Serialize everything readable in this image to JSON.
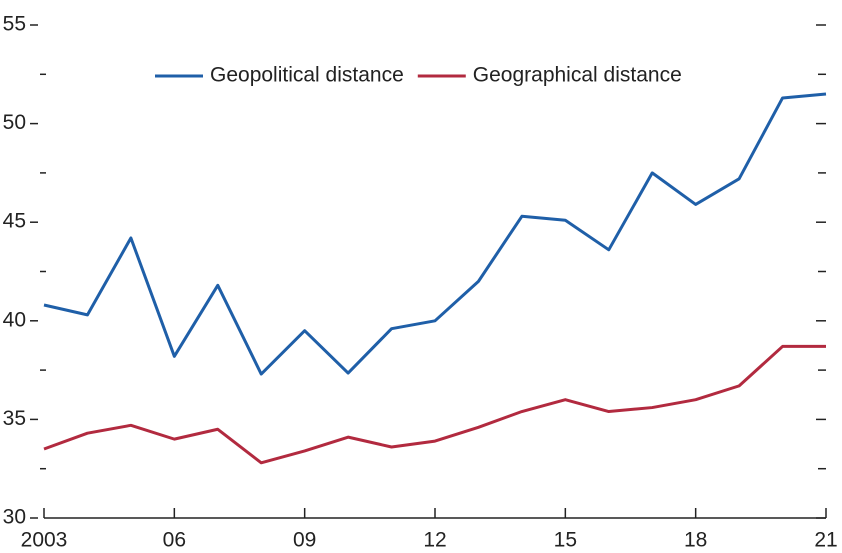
{
  "chart_data": {
    "type": "line",
    "x": [
      2003,
      2004,
      2005,
      2006,
      2007,
      2008,
      2009,
      2010,
      2011,
      2012,
      2013,
      2014,
      2015,
      2016,
      2017,
      2018,
      2019,
      2020,
      2021
    ],
    "series": [
      {
        "name": "Geopolitical distance",
        "color": "#1f5fa8",
        "values": [
          40.8,
          40.3,
          44.2,
          38.2,
          41.8,
          37.3,
          39.5,
          37.35,
          39.6,
          40.0,
          42.0,
          45.3,
          45.1,
          43.6,
          47.5,
          45.9,
          47.2,
          51.3,
          51.5
        ]
      },
      {
        "name": "Geographical distance",
        "color": "#b22a3f",
        "values": [
          33.5,
          34.3,
          34.7,
          34.0,
          34.5,
          32.8,
          33.4,
          34.1,
          33.6,
          33.9,
          34.6,
          35.4,
          36.0,
          35.4,
          35.6,
          36.0,
          36.7,
          38.7,
          38.7
        ]
      }
    ],
    "xlim": [
      2003,
      2021
    ],
    "xticks": [
      {
        "value": 2003,
        "label": "2003"
      },
      {
        "value": 2006,
        "label": "06"
      },
      {
        "value": 2009,
        "label": "09"
      },
      {
        "value": 2012,
        "label": "12"
      },
      {
        "value": 2015,
        "label": "15"
      },
      {
        "value": 2018,
        "label": "18"
      },
      {
        "value": 2021,
        "label": "21"
      }
    ],
    "ylim": [
      30,
      55
    ],
    "yticks": [
      30,
      35,
      40,
      45,
      50,
      55
    ],
    "yminor_ticks": [
      32.5,
      37.5,
      42.5,
      47.5,
      52.5
    ],
    "legend": "top"
  }
}
